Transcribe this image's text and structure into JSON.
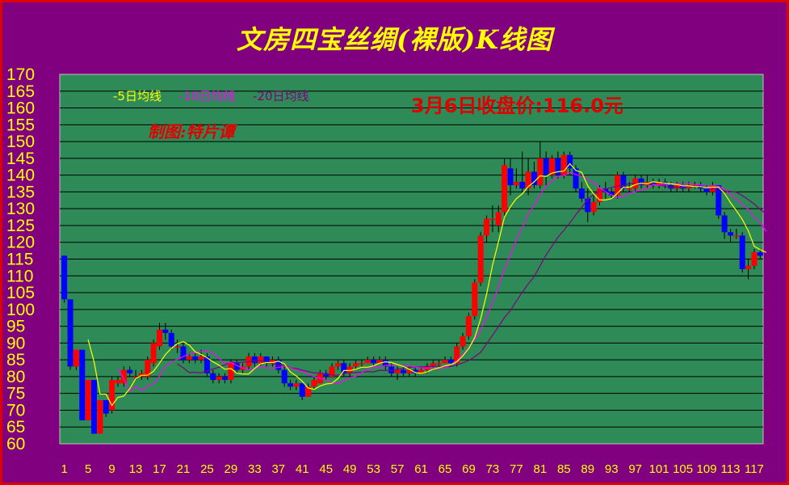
{
  "title": "文房四宝丝绸(裸版)K线图",
  "colors": {
    "background": "#800080",
    "plot": "#2e8b57",
    "up": "#ff0000",
    "down": "#0000ff",
    "ma5": "#ffff00",
    "ma10": "#ff00ff",
    "ma20": "#800080",
    "axis_text": "#ffff00",
    "legend_ma5": "#ffff00",
    "legend_ma10": "#ff00ff",
    "legend_ma20": "#800080",
    "border": "#e00000"
  },
  "annotations": {
    "close_price": "3月6日收盘价:116.0元",
    "author": "制图:特片谭"
  },
  "chart_data": {
    "type": "candlestick",
    "title": "文房四宝丝绸(裸版)K线图",
    "ylim": [
      60,
      170
    ],
    "yticks": [
      60,
      65,
      70,
      75,
      80,
      85,
      90,
      95,
      100,
      105,
      110,
      115,
      120,
      125,
      130,
      135,
      140,
      145,
      150,
      155,
      160,
      165,
      170
    ],
    "xticks": [
      "1",
      "5",
      "9",
      "13",
      "17",
      "21",
      "25",
      "29",
      "33",
      "37",
      "41",
      "45",
      "49",
      "53",
      "57",
      "61",
      "65",
      "69",
      "73",
      "77",
      "81",
      "85",
      "89",
      "93",
      "97",
      "101",
      "105",
      "109",
      "113",
      "117"
    ],
    "grid": true,
    "legend": [
      "-5日均线",
      "-10日均线",
      "-20日均线"
    ],
    "candles": [
      [
        116,
        103,
        116,
        102
      ],
      [
        103,
        83,
        103,
        82
      ],
      [
        83,
        88,
        88,
        82
      ],
      [
        88,
        67,
        88,
        67
      ],
      [
        67,
        79,
        79,
        67
      ],
      [
        79,
        63,
        79,
        63
      ],
      [
        63,
        73,
        73,
        63
      ],
      [
        73,
        69,
        73,
        68
      ],
      [
        70,
        79,
        80,
        69
      ],
      [
        78,
        79,
        80,
        77
      ],
      [
        78,
        82,
        83,
        77
      ],
      [
        82,
        81,
        83,
        80
      ],
      [
        80,
        80,
        82,
        79
      ],
      [
        80,
        81,
        82,
        79
      ],
      [
        80,
        85,
        86,
        79
      ],
      [
        84,
        90,
        91,
        83
      ],
      [
        89,
        94,
        96,
        88
      ],
      [
        94,
        93,
        96,
        91
      ],
      [
        93,
        89,
        94,
        88
      ],
      [
        89,
        89,
        91,
        87
      ],
      [
        89,
        85,
        90,
        84
      ],
      [
        85,
        86,
        87,
        84
      ],
      [
        86,
        85,
        87,
        84
      ],
      [
        85,
        86,
        88,
        84
      ],
      [
        86,
        81,
        87,
        80
      ],
      [
        81,
        79,
        82,
        78
      ],
      [
        79,
        80,
        81,
        78
      ],
      [
        80,
        79,
        81,
        78
      ],
      [
        79,
        84,
        85,
        78
      ],
      [
        84,
        82,
        85,
        81
      ],
      [
        82,
        83,
        84,
        81
      ],
      [
        83,
        86,
        87,
        82
      ],
      [
        86,
        84,
        87,
        83
      ],
      [
        84,
        86,
        87,
        83
      ],
      [
        86,
        84,
        86,
        83
      ],
      [
        84,
        85,
        86,
        83
      ],
      [
        85,
        82,
        86,
        81
      ],
      [
        82,
        78,
        83,
        77
      ],
      [
        78,
        77,
        79,
        76
      ],
      [
        77,
        78,
        79,
        76
      ],
      [
        78,
        74,
        78,
        73
      ],
      [
        74,
        77,
        78,
        74
      ],
      [
        77,
        79,
        80,
        76
      ],
      [
        78,
        81,
        82,
        78
      ],
      [
        81,
        80,
        82,
        79
      ],
      [
        80,
        83,
        84,
        80
      ],
      [
        83,
        84,
        85,
        82
      ],
      [
        84,
        81,
        85,
        80
      ],
      [
        81,
        83,
        84,
        80
      ],
      [
        83,
        84,
        85,
        82
      ],
      [
        84,
        84,
        85,
        83
      ],
      [
        84,
        85,
        86,
        84
      ],
      [
        85,
        84,
        86,
        83
      ],
      [
        84,
        85,
        86,
        84
      ],
      [
        85,
        83,
        86,
        82
      ],
      [
        83,
        81,
        84,
        80
      ],
      [
        81,
        82,
        83,
        79
      ],
      [
        82,
        81,
        83,
        80
      ],
      [
        81,
        82,
        83,
        80
      ],
      [
        82,
        81,
        83,
        80
      ],
      [
        81,
        82,
        83,
        81
      ],
      [
        82,
        83,
        84,
        81
      ],
      [
        83,
        84,
        85,
        82
      ],
      [
        84,
        84,
        85,
        83
      ],
      [
        84,
        85,
        86,
        84
      ],
      [
        85,
        84,
        86,
        83
      ],
      [
        84,
        89,
        90,
        83
      ],
      [
        89,
        92,
        93,
        88
      ],
      [
        92,
        98,
        99,
        91
      ],
      [
        98,
        108,
        109,
        97
      ],
      [
        108,
        122,
        123,
        107
      ],
      [
        122,
        127,
        128,
        120
      ],
      [
        127,
        127,
        131,
        123
      ],
      [
        125,
        129,
        131,
        123
      ],
      [
        129,
        143,
        145,
        128
      ],
      [
        142,
        137,
        145,
        134
      ],
      [
        137,
        138,
        142,
        136
      ],
      [
        138,
        136,
        147,
        135
      ],
      [
        136,
        141,
        145,
        134
      ],
      [
        141,
        137,
        144,
        136
      ],
      [
        137,
        145,
        150,
        136
      ],
      [
        145,
        140,
        147,
        137
      ],
      [
        140,
        145,
        146,
        139
      ],
      [
        145,
        140,
        147,
        139
      ],
      [
        140,
        146,
        147,
        139
      ],
      [
        146,
        142,
        147,
        140
      ],
      [
        142,
        136,
        143,
        135
      ],
      [
        136,
        133,
        138,
        132
      ],
      [
        133,
        129,
        136,
        126
      ],
      [
        129,
        132,
        134,
        128
      ],
      [
        132,
        136,
        137,
        131
      ],
      [
        136,
        135,
        138,
        133
      ],
      [
        135,
        134,
        136,
        133
      ],
      [
        134,
        140,
        141,
        133
      ],
      [
        140,
        136,
        141,
        135
      ],
      [
        136,
        136,
        138,
        135
      ],
      [
        136,
        139,
        140,
        135
      ],
      [
        139,
        137,
        140,
        136
      ],
      [
        137,
        138,
        140,
        136
      ],
      [
        138,
        137,
        139,
        136
      ],
      [
        137,
        138,
        139,
        136
      ],
      [
        138,
        137,
        139,
        136
      ],
      [
        137,
        136,
        138,
        135
      ],
      [
        136,
        137,
        138,
        135
      ],
      [
        137,
        136,
        138,
        135
      ],
      [
        136,
        137,
        138,
        135
      ],
      [
        137,
        137,
        138,
        136
      ],
      [
        137,
        136,
        138,
        135
      ],
      [
        136,
        135,
        137,
        134
      ],
      [
        135,
        137,
        138,
        134
      ],
      [
        137,
        128,
        137,
        127
      ],
      [
        128,
        123,
        129,
        121
      ],
      [
        123,
        122,
        124,
        120
      ],
      [
        122,
        122,
        124,
        121
      ],
      [
        122,
        112,
        123,
        111
      ],
      [
        112,
        113,
        115,
        109
      ],
      [
        113,
        117,
        118,
        112
      ],
      [
        117,
        116,
        118,
        115
      ]
    ],
    "ma5": [
      null,
      null,
      null,
      null,
      91.0,
      84.4,
      74.8,
      74.8,
      71.4,
      73.8,
      74.2,
      76.4,
      79.4,
      80.4,
      80.4,
      81.6,
      84.0,
      86.6,
      88.4,
      89.8,
      90.4,
      89.4,
      87.4,
      86.6,
      85.6,
      84.4,
      83.4,
      82.2,
      82.4,
      81.0,
      80.8,
      80.8,
      82.4,
      83.8,
      84.2,
      84.2,
      84.6,
      83.8,
      81.4,
      80.2,
      78.6,
      76.6,
      76.2,
      77.2,
      77.8,
      78.0,
      79.4,
      81.8,
      81.8,
      82.2,
      82.8,
      82.8,
      83.2,
      84.0,
      84.4,
      84.2,
      83.6,
      83.0,
      82.2,
      81.2,
      81.0,
      81.4,
      82.2,
      82.6,
      83.2,
      83.6,
      84.4,
      86.2,
      88.4,
      91.6,
      97.2,
      104.6,
      113.2,
      120.2,
      127.4,
      130.6,
      133.0,
      134.4,
      136.6,
      138.0,
      139.8,
      139.6,
      140.6,
      141.0,
      141.2,
      143.4,
      141.4,
      140.8,
      136.8,
      134.4,
      132.6,
      132.6,
      133.0,
      134.6,
      136.4,
      136.4,
      137.2,
      137.6,
      137.4,
      138.0,
      137.8,
      137.6,
      137.4,
      137.2,
      136.8,
      136.8,
      136.6,
      136.6,
      136.2,
      136.4,
      136.4,
      134.6,
      131.8,
      129.4,
      126.8,
      123.4,
      118.8,
      117.8,
      117.0
    ],
    "ma10": [
      null,
      null,
      null,
      null,
      null,
      null,
      null,
      null,
      null,
      82.4,
      79.3,
      75.6,
      77.1,
      75.9,
      77.1,
      77.9,
      80.2,
      83.0,
      84.4,
      85.1,
      86.0,
      86.7,
      87.0,
      87.5,
      87.7,
      86.9,
      85.4,
      84.0,
      84.2,
      83.3,
      82.6,
      82.1,
      82.3,
      83.1,
      82.6,
      82.5,
      82.7,
      83.1,
      82.6,
      82.0,
      81.6,
      80.6,
      80.0,
      79.5,
      79.0,
      78.3,
      78.0,
      78.7,
      79.7,
      80.1,
      81.1,
      82.3,
      82.8,
      82.9,
      83.3,
      83.4,
      83.4,
      83.3,
      83.3,
      82.8,
      82.6,
      82.5,
      82.6,
      82.4,
      82.7,
      83.5,
      84.8,
      86.5,
      88.6,
      91.1,
      93.8,
      97.7,
      102.1,
      106.8,
      112.0,
      116.2,
      120.7,
      124.2,
      128.4,
      131.0,
      134.2,
      136.6,
      138.3,
      139.6,
      139.9,
      140.7,
      140.2,
      139.7,
      138.7,
      137.8,
      136.2,
      135.0,
      134.1,
      133.4,
      133.7,
      134.6,
      135.1,
      135.5,
      136.0,
      137.2,
      137.0,
      137.2,
      137.4,
      137.4,
      137.3,
      137.5,
      137.2,
      137.1,
      136.7,
      136.8,
      136.7,
      135.8,
      134.2,
      133.0,
      131.3,
      129.8,
      127.6,
      125.8,
      123.2
    ],
    "ma20": [
      null,
      null,
      null,
      null,
      null,
      null,
      null,
      null,
      null,
      null,
      null,
      null,
      null,
      null,
      null,
      null,
      null,
      null,
      null,
      83.8,
      82.6,
      81.2,
      81.3,
      81.1,
      81.7,
      82.3,
      82.8,
      83.5,
      84.3,
      84.2,
      84.3,
      84.4,
      84.6,
      84.8,
      84.3,
      83.8,
      83.4,
      83.4,
      82.6,
      82.4,
      81.9,
      81.5,
      81.1,
      81.1,
      80.7,
      80.5,
      80.4,
      80.9,
      81.1,
      81.2,
      81.3,
      81.5,
      81.4,
      81.9,
      81.8,
      81.8,
      82.2,
      82.4,
      82.8,
      82.8,
      82.9,
      83.0,
      83.1,
      83.1,
      82.9,
      83.0,
      83.5,
      84.1,
      84.8,
      85.9,
      87.2,
      89.8,
      92.3,
      94.9,
      97.6,
      99.7,
      102.5,
      105.1,
      107.6,
      109.8,
      113.0,
      116.2,
      118.9,
      121.5,
      123.6,
      125.8,
      128.2,
      130.4,
      132.9,
      134.2,
      135.3,
      135.9,
      136.3,
      136.7,
      136.8,
      137.5,
      137.4,
      137.2,
      137.5,
      137.4,
      137.0,
      136.7,
      136.4,
      136.4,
      136.3,
      136.6,
      136.6,
      136.6,
      136.2,
      135.9,
      135.9,
      135.4,
      135.1,
      134.9,
      133.9,
      132.7,
      131.4,
      129.8,
      128.4,
      126.9
    ]
  }
}
